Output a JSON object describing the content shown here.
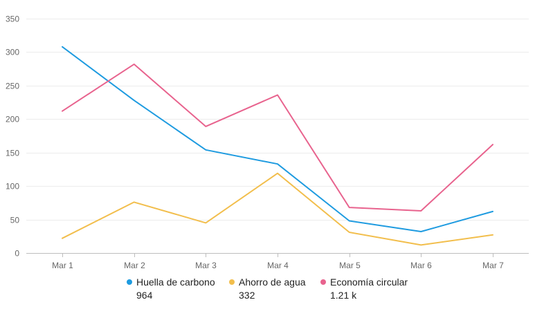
{
  "chart_data": {
    "type": "line",
    "categories": [
      "Mar 1",
      "Mar 2",
      "Mar 3",
      "Mar 4",
      "Mar 5",
      "Mar 6",
      "Mar 7"
    ],
    "ylim": [
      0,
      350
    ],
    "yticks": [
      0,
      50,
      100,
      150,
      200,
      250,
      300,
      350
    ],
    "grid": true,
    "legend_position": "bottom",
    "series": [
      {
        "name": "Huella de carbono",
        "color": "#1e9be0",
        "total": "964",
        "values": [
          308,
          228,
          154,
          133,
          48,
          32,
          62
        ]
      },
      {
        "name": "Ahorro de agua",
        "color": "#f2be4c",
        "total": "332",
        "values": [
          22,
          76,
          45,
          119,
          31,
          12,
          27
        ]
      },
      {
        "name": "Economía circular",
        "color": "#e8638e",
        "total": "1.21 k",
        "values": [
          212,
          282,
          189,
          236,
          68,
          63,
          162
        ]
      }
    ]
  }
}
